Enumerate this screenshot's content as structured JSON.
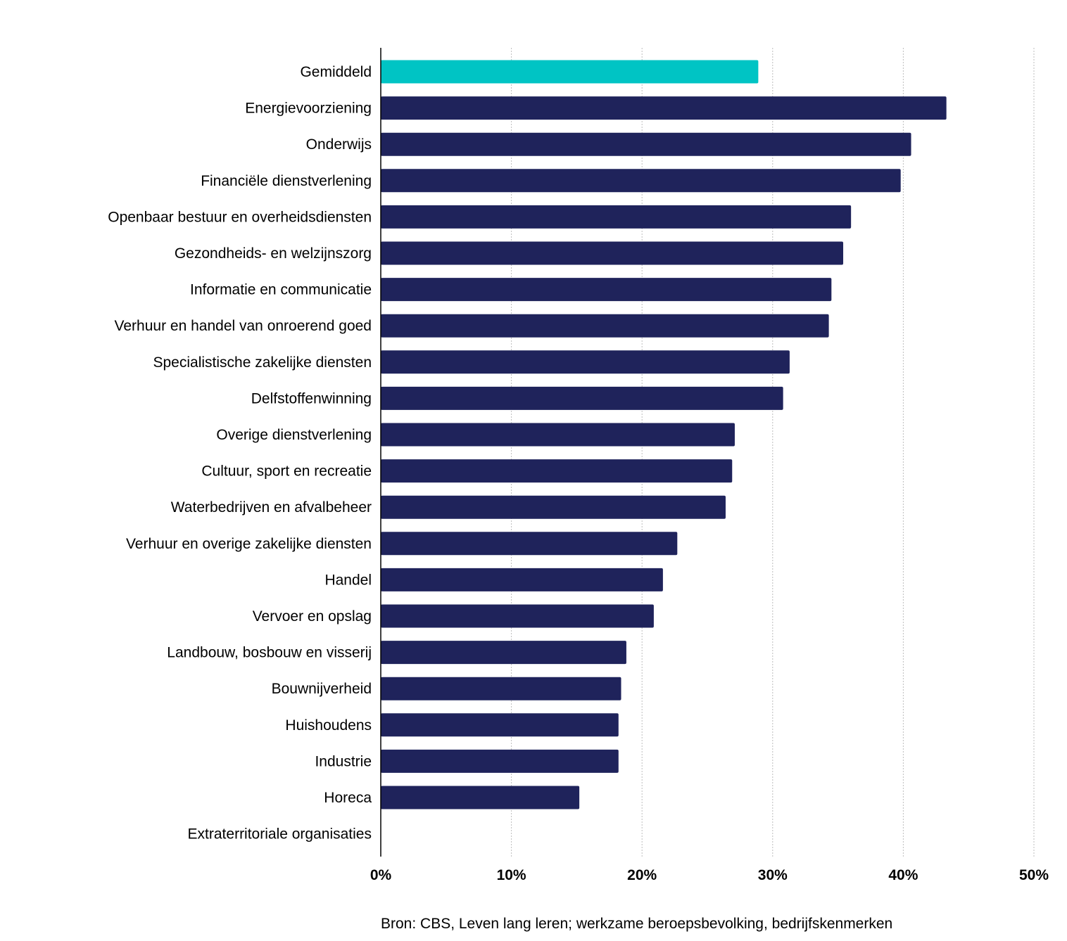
{
  "chart_data": {
    "type": "bar",
    "orientation": "horizontal",
    "categories": [
      "Gemiddeld",
      "Energievoorziening",
      "Onderwijs",
      "Financiële dienstverlening",
      "Openbaar bestuur en overheidsdiensten",
      "Gezondheids- en welzijnszorg",
      "Informatie en communicatie",
      "Verhuur en handel van onroerend goed",
      "Specialistische zakelijke diensten",
      "Delfstoffenwinning",
      "Overige dienstverlening",
      "Cultuur, sport en recreatie",
      "Waterbedrijven en afvalbeheer",
      "Verhuur en overige zakelijke diensten",
      "Handel",
      "Vervoer en opslag",
      "Landbouw, bosbouw en visserij",
      "Bouwnijverheid",
      "Huishoudens",
      "Industrie",
      "Horeca",
      "Extraterritoriale organisaties"
    ],
    "values": [
      28.9,
      43.3,
      40.6,
      39.8,
      36.0,
      35.4,
      34.5,
      34.3,
      31.3,
      30.8,
      27.1,
      26.9,
      26.4,
      22.7,
      21.6,
      20.9,
      18.8,
      18.4,
      18.2,
      18.2,
      15.2,
      0
    ],
    "highlight_index": 0,
    "colors": {
      "highlight": "#00c4c4",
      "bar": "#1f235b",
      "grid": "#bdbdbd",
      "axis": "#000000"
    },
    "xlim": [
      0,
      50
    ],
    "xticks": [
      "0%",
      "10%",
      "20%",
      "30%",
      "40%",
      "50%"
    ],
    "grid": true,
    "grid_style": "dotted-vertical",
    "legend": "none"
  },
  "source": "Bron: CBS, Leven lang leren; werkzame beroepsbevolking, bedrijfskenmerken"
}
